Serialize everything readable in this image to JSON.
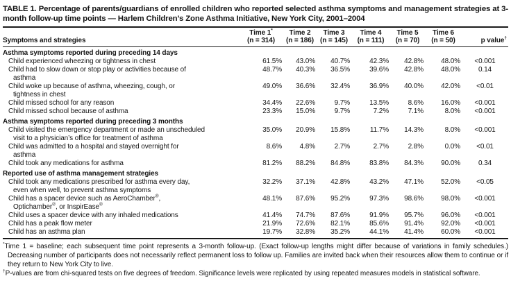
{
  "table": {
    "title": "TABLE 1. Percentage of parents/guardians of enrolled children who reported selected asthma symptoms and management strate­gies at 3-month follow-up time points — Harlem Children’s Zone Asthma Initiative, New York City, 2001–2004",
    "header": {
      "row_label": "Symptoms and strategies",
      "columns": [
        {
          "top": "Time 1*",
          "bottom": "(n = 314)"
        },
        {
          "top": "Time 2",
          "bottom": "(n = 186)"
        },
        {
          "top": "Time 3",
          "bottom": "(n = 145)"
        },
        {
          "top": "Time 4",
          "bottom": "(n = 111)"
        },
        {
          "top": "Time 5",
          "bottom": "(n = 70)"
        },
        {
          "top": "Time 6",
          "bottom": "(n = 50)"
        },
        {
          "top": "",
          "bottom": "p value†"
        }
      ]
    },
    "sections": [
      {
        "header": "Asthma symptoms reported during preceding 14 days",
        "rows": [
          {
            "label_lines": [
              "Child experienced wheezing or tightness in chest"
            ],
            "values": [
              "61.5%",
              "43.0%",
              "40.7%",
              "42.3%",
              "42.8%",
              "48.0%"
            ],
            "p": "<0.001"
          },
          {
            "label_lines": [
              "Child had to slow down or stop play or activities because of",
              "asthma"
            ],
            "values": [
              "48.7%",
              "40.3%",
              "36.5%",
              "39.6%",
              "42.8%",
              "48.0%"
            ],
            "p": "0.14"
          },
          {
            "label_lines": [
              "Child woke up because of asthma, wheezing, cough, or",
              "tightness in chest"
            ],
            "values": [
              "49.0%",
              "36.6%",
              "32.4%",
              "36.9%",
              "40.0%",
              "42.0%"
            ],
            "p": "<0.01"
          },
          {
            "label_lines": [
              "Child missed school for any reason"
            ],
            "values": [
              "34.4%",
              "22.6%",
              "9.7%",
              "13.5%",
              "8.6%",
              "16.0%"
            ],
            "p": "<0.001"
          },
          {
            "label_lines": [
              "Child missed school because of asthma"
            ],
            "values": [
              "23.3%",
              "15.0%",
              "9.7%",
              "7.2%",
              "7.1%",
              "8.0%"
            ],
            "p": "<0.001"
          }
        ]
      },
      {
        "header": "Asthma symptoms reported during preceding 3 months",
        "rows": [
          {
            "label_lines": [
              "Child visited the emergency department or made an unscheduled",
              "visit to a physician’s office for treatment of asthma"
            ],
            "values": [
              "35.0%",
              "20.9%",
              "15.8%",
              "11.7%",
              "14.3%",
              "8.0%"
            ],
            "p": "<0.001"
          },
          {
            "label_lines": [
              "Child was admitted to a hospital and stayed overnight for",
              "asthma"
            ],
            "values": [
              "8.6%",
              "4.8%",
              "2.7%",
              "2.7%",
              "2.8%",
              "0.0%"
            ],
            "p": "<0.01"
          },
          {
            "label_lines": [
              "Child took any medications for asthma"
            ],
            "values": [
              "81.2%",
              "88.2%",
              "84.8%",
              "83.8%",
              "84.3%",
              "90.0%"
            ],
            "p": "0.34"
          }
        ]
      },
      {
        "header": "Reported use of asthma management strategies",
        "rows": [
          {
            "label_lines": [
              "Child took any medications prescribed for asthma every day,",
              "even when well, to prevent asthma symptoms"
            ],
            "values": [
              "32.2%",
              "37.1%",
              "42.8%",
              "43.2%",
              "47.1%",
              "52.0%"
            ],
            "p": "<0.05"
          },
          {
            "label_lines": [
              "Child has a spacer device such as AeroChamber®,",
              "Optichamber®, or InspirEase®"
            ],
            "values": [
              "48.1%",
              "87.6%",
              "95.2%",
              "97.3%",
              "98.6%",
              "98.0%"
            ],
            "p": "<0.001"
          },
          {
            "label_lines": [
              "Child uses a spacer device with any inhaled medications"
            ],
            "values": [
              "41.4%",
              "74.7%",
              "87.6%",
              "91.9%",
              "95.7%",
              "96.0%"
            ],
            "p": "<0.001"
          },
          {
            "label_lines": [
              "Child has a peak flow meter"
            ],
            "values": [
              "21.9%",
              "72.6%",
              "82.1%",
              "85.6%",
              "91.4%",
              "92.0%"
            ],
            "p": "<0.001"
          },
          {
            "label_lines": [
              "Child has an asthma plan"
            ],
            "values": [
              "19.7%",
              "32.8%",
              "35.2%",
              "44.1%",
              "41.4%",
              "60.0%"
            ],
            "p": "<0.001"
          }
        ]
      }
    ],
    "footnotes": [
      {
        "marker": "*",
        "text": "Time 1 = baseline; each subsequent time point represents a 3-month follow-up. (Exact follow-up lengths might differ because of variations in family schedules.) Decreasing number of participants does not necessarily reflect permanent loss to follow up. Families are invited back when their resources allow them to continue or if they return to New York City to live."
      },
      {
        "marker": "†",
        "text": "P-values are from chi-squared tests on five degrees of freedom. Significance levels were replicated by using repeated measures models in statistical software."
      }
    ]
  }
}
